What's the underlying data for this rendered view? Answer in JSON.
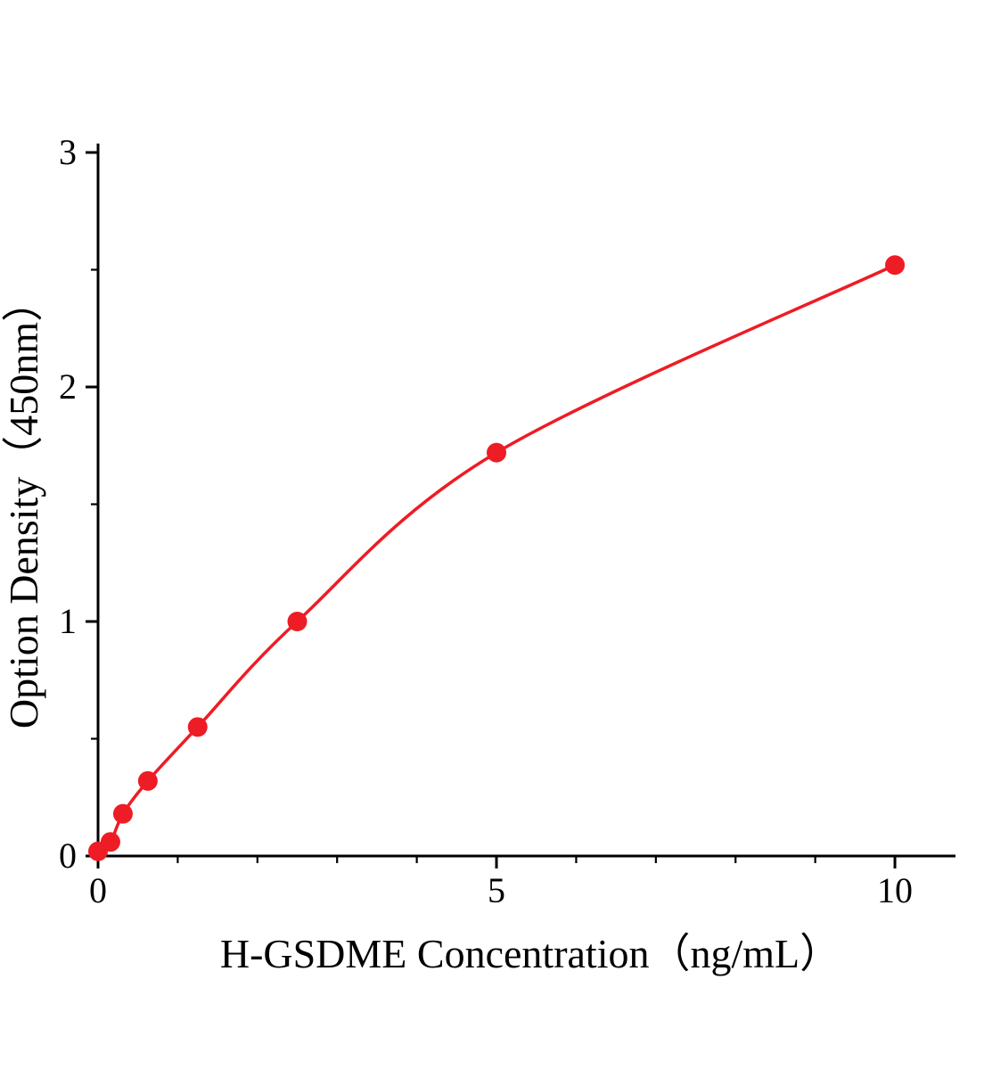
{
  "figure": {
    "background_color": "#ffffff",
    "accent_color": "#ee1c25",
    "axis_color": "#000000"
  },
  "chart_data": {
    "type": "scatter",
    "title": "",
    "xlabel": "H-GSDME Concentration（ng/mL）",
    "ylabel": "Option Density（450nm）",
    "x": [
      0,
      0.156,
      0.3125,
      0.625,
      1.25,
      2.5,
      5,
      10
    ],
    "y": [
      0.02,
      0.06,
      0.18,
      0.32,
      0.55,
      1.0,
      1.72,
      2.52
    ],
    "xlim": [
      0,
      10.76
    ],
    "ylim": [
      0,
      3
    ],
    "x_major_ticks": [
      0,
      5,
      10
    ],
    "x_major_labels": [
      "0",
      "5",
      "10"
    ],
    "x_minor_ticks": [
      1,
      2,
      3,
      4,
      6,
      7,
      8,
      9
    ],
    "y_major_ticks": [
      0,
      1,
      2,
      3
    ],
    "y_major_labels": [
      "0",
      "1",
      "2",
      "3"
    ],
    "y_minor_ticks": [
      0.5,
      1.5,
      2.5
    ],
    "grid": false,
    "legend_position": "none",
    "line_color": "#ee1c25",
    "marker": "circle",
    "marker_color": "#ee1c25",
    "marker_radius": 11,
    "curve_smooth": true
  }
}
